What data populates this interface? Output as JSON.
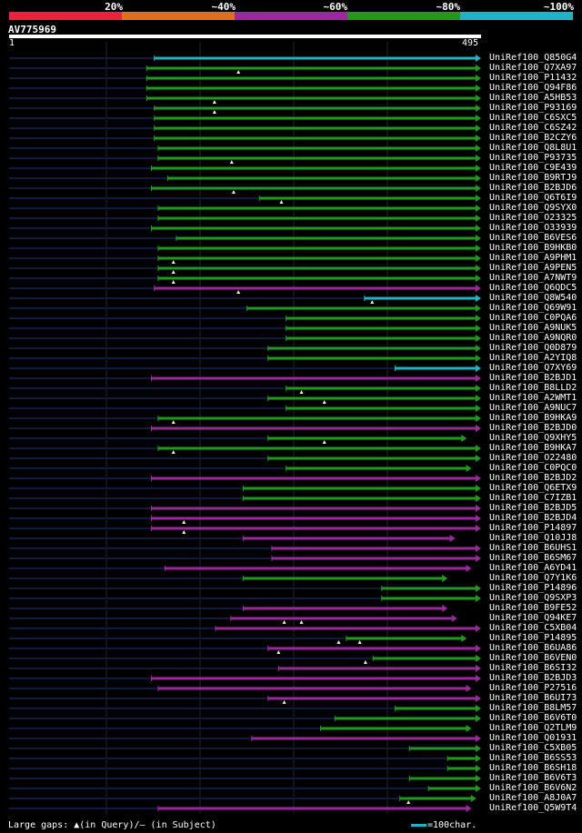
{
  "colors": {
    "bg": "#000000",
    "query_track": "#101a3c",
    "guide": "#23233a",
    "band_red": "#e8233a",
    "band_orange": "#e26d1a",
    "band_purple": "#9a2a9a",
    "band_green": "#1f9a1f",
    "band_cyan": "#1eb4c3",
    "marker": "#f0f0c0"
  },
  "identity_scale": {
    "labels": [
      "20%",
      "~40%",
      "~60%",
      "~80%",
      "~100%"
    ],
    "bands": [
      {
        "color": "#e8233a"
      },
      {
        "color": "#e26d1a"
      },
      {
        "color": "#9a2a9a"
      },
      {
        "color": "#1f9a1f"
      },
      {
        "color": "#1eb4c3"
      }
    ]
  },
  "query": {
    "id": "AV775969",
    "start_label": "1",
    "end_label": "495",
    "length": 495
  },
  "hits": [
    {
      "name": "UniRef100_Q850G4",
      "identity": "cyan",
      "start": 153,
      "end": 495,
      "end_arrow": true,
      "markers": []
    },
    {
      "name": "UniRef100_Q7XA97",
      "identity": "green",
      "start": 145,
      "end": 495,
      "end_arrow": true,
      "markers": [
        241
      ]
    },
    {
      "name": "UniRef100_P11432",
      "identity": "green",
      "start": 145,
      "end": 495,
      "end_arrow": true,
      "markers": []
    },
    {
      "name": "UniRef100_Q94F86",
      "identity": "green",
      "start": 145,
      "end": 495,
      "end_arrow": true,
      "markers": []
    },
    {
      "name": "UniRef100_A5HB53",
      "identity": "green",
      "start": 145,
      "end": 495,
      "end_arrow": true,
      "markers": [
        216
      ]
    },
    {
      "name": "UniRef100_P93169",
      "identity": "green",
      "start": 153,
      "end": 495,
      "end_arrow": true,
      "markers": [
        216
      ]
    },
    {
      "name": "UniRef100_C6SXC5",
      "identity": "green",
      "start": 153,
      "end": 495,
      "end_arrow": true,
      "markers": []
    },
    {
      "name": "UniRef100_C6SZ42",
      "identity": "green",
      "start": 153,
      "end": 495,
      "end_arrow": true,
      "markers": []
    },
    {
      "name": "UniRef100_B2CZY6",
      "identity": "green",
      "start": 153,
      "end": 495,
      "end_arrow": true,
      "markers": []
    },
    {
      "name": "UniRef100_Q8L8U1",
      "identity": "green",
      "start": 157,
      "end": 495,
      "end_arrow": true,
      "markers": []
    },
    {
      "name": "UniRef100_P93735",
      "identity": "green",
      "start": 157,
      "end": 495,
      "end_arrow": true,
      "markers": [
        234
      ]
    },
    {
      "name": "UniRef100_C9E439",
      "identity": "green",
      "start": 150,
      "end": 495,
      "end_arrow": true,
      "markers": []
    },
    {
      "name": "UniRef100_B9RTJ9",
      "identity": "green",
      "start": 167,
      "end": 495,
      "end_arrow": true,
      "markers": []
    },
    {
      "name": "UniRef100_B2BJD6",
      "identity": "green",
      "start": 150,
      "end": 495,
      "end_arrow": true,
      "markers": [
        236
      ]
    },
    {
      "name": "UniRef100_Q6T6I9",
      "identity": "green",
      "start": 263,
      "end": 495,
      "end_arrow": true,
      "markers": [
        286
      ]
    },
    {
      "name": "UniRef100_Q9SYX0",
      "identity": "green",
      "start": 157,
      "end": 495,
      "end_arrow": true,
      "markers": []
    },
    {
      "name": "UniRef100_O23325",
      "identity": "green",
      "start": 157,
      "end": 495,
      "end_arrow": true,
      "markers": []
    },
    {
      "name": "UniRef100_O33939",
      "identity": "green",
      "start": 150,
      "end": 495,
      "end_arrow": true,
      "markers": []
    },
    {
      "name": "UniRef100_B6VES6",
      "identity": "green",
      "start": 176,
      "end": 495,
      "end_arrow": true,
      "markers": []
    },
    {
      "name": "UniRef100_B9HKB0",
      "identity": "green",
      "start": 157,
      "end": 495,
      "end_arrow": true,
      "markers": []
    },
    {
      "name": "UniRef100_A9PHM1",
      "identity": "green",
      "start": 157,
      "end": 495,
      "end_arrow": true,
      "markers": [
        173
      ]
    },
    {
      "name": "UniRef100_A9PEN5",
      "identity": "green",
      "start": 157,
      "end": 495,
      "end_arrow": true,
      "markers": [
        173
      ]
    },
    {
      "name": "UniRef100_A7NWT9",
      "identity": "green",
      "start": 157,
      "end": 495,
      "end_arrow": true,
      "markers": [
        173
      ]
    },
    {
      "name": "UniRef100_Q6QDC5",
      "identity": "purple",
      "start": 153,
      "end": 495,
      "end_arrow": true,
      "markers": [
        241
      ]
    },
    {
      "name": "UniRef100_Q8W540",
      "identity": "cyan",
      "start": 373,
      "end": 495,
      "end_arrow": true,
      "markers": [
        381
      ]
    },
    {
      "name": "UniRef100_Q69W91",
      "identity": "green",
      "start": 250,
      "end": 495,
      "end_arrow": true,
      "markers": []
    },
    {
      "name": "UniRef100_C0PQA6",
      "identity": "green",
      "start": 291,
      "end": 495,
      "end_arrow": true,
      "markers": []
    },
    {
      "name": "UniRef100_A9NUK5",
      "identity": "green",
      "start": 291,
      "end": 495,
      "end_arrow": true,
      "markers": []
    },
    {
      "name": "UniRef100_A9NQR0",
      "identity": "green",
      "start": 291,
      "end": 495,
      "end_arrow": true,
      "markers": []
    },
    {
      "name": "UniRef100_Q0D879",
      "identity": "green",
      "start": 272,
      "end": 495,
      "end_arrow": true,
      "markers": []
    },
    {
      "name": "UniRef100_A2YIQ8",
      "identity": "green",
      "start": 272,
      "end": 495,
      "end_arrow": true,
      "markers": []
    },
    {
      "name": "UniRef100_Q7XY69",
      "identity": "cyan",
      "start": 405,
      "end": 495,
      "end_arrow": true,
      "markers": []
    },
    {
      "name": "UniRef100_B2BJD1",
      "identity": "purple",
      "start": 150,
      "end": 495,
      "end_arrow": true,
      "markers": []
    },
    {
      "name": "UniRef100_B8LLD2",
      "identity": "green",
      "start": 291,
      "end": 495,
      "end_arrow": true,
      "markers": [
        307
      ]
    },
    {
      "name": "UniRef100_A2WMT1",
      "identity": "green",
      "start": 272,
      "end": 495,
      "end_arrow": true,
      "markers": [
        331
      ]
    },
    {
      "name": "UniRef100_A9NUC7",
      "identity": "green",
      "start": 291,
      "end": 495,
      "end_arrow": true,
      "markers": []
    },
    {
      "name": "UniRef100_B9HKA9",
      "identity": "green",
      "start": 157,
      "end": 495,
      "end_arrow": true,
      "markers": [
        173
      ]
    },
    {
      "name": "UniRef100_B2BJD0",
      "identity": "purple",
      "start": 150,
      "end": 495,
      "end_arrow": true,
      "markers": []
    },
    {
      "name": "UniRef100_Q9XHY5",
      "identity": "green",
      "start": 272,
      "end": 480,
      "end_arrow": true,
      "markers": [
        331
      ]
    },
    {
      "name": "UniRef100_B9HKA7",
      "identity": "green",
      "start": 157,
      "end": 495,
      "end_arrow": true,
      "markers": [
        173
      ]
    },
    {
      "name": "UniRef100_O22480",
      "identity": "green",
      "start": 272,
      "end": 495,
      "end_arrow": true,
      "markers": []
    },
    {
      "name": "UniRef100_C0PQC0",
      "identity": "green",
      "start": 291,
      "end": 485,
      "end_arrow": true,
      "markers": []
    },
    {
      "name": "UniRef100_B2BJD2",
      "identity": "purple",
      "start": 150,
      "end": 495,
      "end_arrow": true,
      "markers": []
    },
    {
      "name": "UniRef100_Q6ETX9",
      "identity": "green",
      "start": 246,
      "end": 495,
      "end_arrow": true,
      "markers": []
    },
    {
      "name": "UniRef100_C7IZB1",
      "identity": "green",
      "start": 246,
      "end": 495,
      "end_arrow": true,
      "markers": []
    },
    {
      "name": "UniRef100_B2BJD5",
      "identity": "purple",
      "start": 150,
      "end": 495,
      "end_arrow": true,
      "markers": []
    },
    {
      "name": "UniRef100_B2BJD4",
      "identity": "purple",
      "start": 150,
      "end": 495,
      "end_arrow": true,
      "markers": [
        184
      ]
    },
    {
      "name": "UniRef100_P14897",
      "identity": "purple",
      "start": 150,
      "end": 495,
      "end_arrow": true,
      "markers": [
        184
      ]
    },
    {
      "name": "UniRef100_Q10JJ8",
      "identity": "purple",
      "start": 246,
      "end": 468,
      "end_arrow": true,
      "markers": []
    },
    {
      "name": "UniRef100_B6UHS1",
      "identity": "purple",
      "start": 276,
      "end": 495,
      "end_arrow": true,
      "markers": []
    },
    {
      "name": "UniRef100_B6SM67",
      "identity": "purple",
      "start": 276,
      "end": 495,
      "end_arrow": true,
      "markers": []
    },
    {
      "name": "UniRef100_A6YD41",
      "identity": "purple",
      "start": 164,
      "end": 485,
      "end_arrow": true,
      "markers": []
    },
    {
      "name": "UniRef100_Q7Y1K6",
      "identity": "green",
      "start": 246,
      "end": 460,
      "end_arrow": true,
      "markers": []
    },
    {
      "name": "UniRef100_P14896",
      "identity": "green",
      "start": 391,
      "end": 495,
      "end_arrow": true,
      "markers": []
    },
    {
      "name": "UniRef100_Q9SXP3",
      "identity": "green",
      "start": 391,
      "end": 495,
      "end_arrow": true,
      "markers": []
    },
    {
      "name": "UniRef100_B9FE52",
      "identity": "purple",
      "start": 246,
      "end": 460,
      "end_arrow": true,
      "markers": []
    },
    {
      "name": "UniRef100_Q94KE7",
      "identity": "purple",
      "start": 233,
      "end": 470,
      "end_arrow": true,
      "markers": [
        289,
        307
      ]
    },
    {
      "name": "UniRef100_C5XB04",
      "identity": "purple",
      "start": 217,
      "end": 495,
      "end_arrow": true,
      "markers": []
    },
    {
      "name": "UniRef100_P14895",
      "identity": "green",
      "start": 354,
      "end": 480,
      "end_arrow": true,
      "markers": [
        346,
        368
      ]
    },
    {
      "name": "UniRef100_B6UA86",
      "identity": "purple",
      "start": 272,
      "end": 495,
      "end_arrow": true,
      "markers": [
        283
      ]
    },
    {
      "name": "UniRef100_B6VEN0",
      "identity": "green",
      "start": 382,
      "end": 495,
      "end_arrow": true,
      "markers": [
        374
      ]
    },
    {
      "name": "UniRef100_B6SI32",
      "identity": "purple",
      "start": 283,
      "end": 495,
      "end_arrow": true,
      "markers": []
    },
    {
      "name": "UniRef100_B2BJD3",
      "identity": "purple",
      "start": 150,
      "end": 495,
      "end_arrow": true,
      "markers": []
    },
    {
      "name": "UniRef100_P27516",
      "identity": "purple",
      "start": 157,
      "end": 485,
      "end_arrow": true,
      "markers": []
    },
    {
      "name": "UniRef100_B6UI73",
      "identity": "purple",
      "start": 272,
      "end": 495,
      "end_arrow": true,
      "markers": [
        289
      ]
    },
    {
      "name": "UniRef100_B8LM57",
      "identity": "green",
      "start": 405,
      "end": 495,
      "end_arrow": true,
      "markers": []
    },
    {
      "name": "UniRef100_B6V6T0",
      "identity": "green",
      "start": 342,
      "end": 495,
      "end_arrow": true,
      "markers": []
    },
    {
      "name": "UniRef100_Q2TLM9",
      "identity": "green",
      "start": 327,
      "end": 485,
      "end_arrow": true,
      "markers": []
    },
    {
      "name": "UniRef100_Q01931",
      "identity": "purple",
      "start": 255,
      "end": 495,
      "end_arrow": true,
      "markers": []
    },
    {
      "name": "UniRef100_C5XB05",
      "identity": "green",
      "start": 420,
      "end": 495,
      "end_arrow": true,
      "markers": []
    },
    {
      "name": "UniRef100_B6SS53",
      "identity": "green",
      "start": 460,
      "end": 495,
      "end_arrow": true,
      "markers": []
    },
    {
      "name": "UniRef100_B6SH18",
      "identity": "green",
      "start": 460,
      "end": 495,
      "end_arrow": true,
      "markers": []
    },
    {
      "name": "UniRef100_B6V6T3",
      "identity": "green",
      "start": 420,
      "end": 495,
      "end_arrow": true,
      "markers": []
    },
    {
      "name": "UniRef100_B6V6N2",
      "identity": "green",
      "start": 440,
      "end": 495,
      "end_arrow": true,
      "markers": []
    },
    {
      "name": "UniRef100_A8J0A7",
      "identity": "green",
      "start": 410,
      "end": 490,
      "end_arrow": true,
      "markers": [
        419
      ]
    },
    {
      "name": "UniRef100_Q5W9T4",
      "identity": "purple",
      "start": 157,
      "end": 485,
      "end_arrow": true,
      "markers": []
    }
  ],
  "legend": {
    "text": "Large gaps: ▲(in Query)/– (in Subject)",
    "scale_text": "=100char."
  }
}
